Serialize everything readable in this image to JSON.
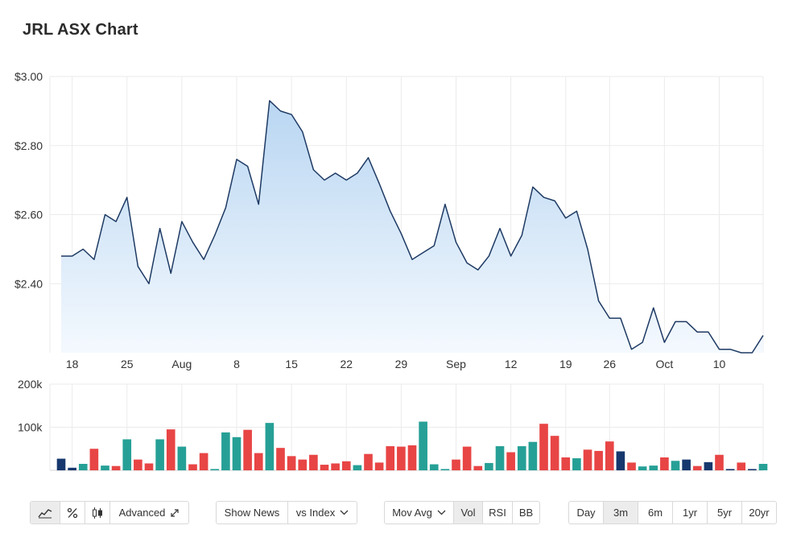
{
  "title": "JRL ASX Chart",
  "chart_data": {
    "type": "area",
    "price": {
      "y_ticks": [
        "$3.00",
        "$2.80",
        "$2.60",
        "$2.40"
      ],
      "y_tick_values": [
        3.0,
        2.8,
        2.6,
        2.4
      ],
      "ylim": [
        2.2,
        3.0
      ],
      "values": [
        2.48,
        2.48,
        2.5,
        2.47,
        2.6,
        2.58,
        2.65,
        2.45,
        2.4,
        2.56,
        2.43,
        2.58,
        2.52,
        2.47,
        2.54,
        2.62,
        2.76,
        2.74,
        2.63,
        2.93,
        2.9,
        2.89,
        2.84,
        2.73,
        2.7,
        2.72,
        2.7,
        2.72,
        2.765,
        2.69,
        2.61,
        2.545,
        2.47,
        2.49,
        2.51,
        2.63,
        2.52,
        2.46,
        2.44,
        2.48,
        2.56,
        2.48,
        2.54,
        2.68,
        2.65,
        2.64,
        2.59,
        2.61,
        2.5,
        2.35,
        2.3,
        2.3,
        2.21,
        2.23,
        2.33,
        2.23,
        2.29,
        2.29,
        2.26,
        2.26,
        2.21,
        2.21,
        2.2,
        2.2,
        2.25
      ]
    },
    "x_ticks": [
      {
        "label": "18",
        "index": 1
      },
      {
        "label": "25",
        "index": 6
      },
      {
        "label": "Aug",
        "index": 11
      },
      {
        "label": "8",
        "index": 16
      },
      {
        "label": "15",
        "index": 21
      },
      {
        "label": "22",
        "index": 26
      },
      {
        "label": "29",
        "index": 31
      },
      {
        "label": "Sep",
        "index": 36
      },
      {
        "label": "12",
        "index": 41
      },
      {
        "label": "19",
        "index": 46
      },
      {
        "label": "26",
        "index": 50
      },
      {
        "label": "Oct",
        "index": 55
      },
      {
        "label": "10",
        "index": 60
      }
    ],
    "volume": {
      "y_ticks": [
        "200k",
        "100k"
      ],
      "y_tick_values": [
        200000,
        100000
      ],
      "ylim": [
        0,
        200000
      ],
      "values": [
        27000,
        6000,
        15000,
        50000,
        11000,
        10000,
        72000,
        25000,
        16000,
        72000,
        95000,
        55000,
        14000,
        40000,
        3000,
        88000,
        77000,
        94000,
        40000,
        110000,
        52000,
        33000,
        25000,
        36000,
        13000,
        16000,
        21000,
        12000,
        38000,
        18000,
        56000,
        55000,
        58000,
        113000,
        14000,
        3000,
        25000,
        55000,
        10000,
        17000,
        56000,
        42000,
        56000,
        66000,
        108000,
        80000,
        30000,
        28000,
        48000,
        45000,
        67000,
        44000,
        18000,
        9000,
        11000,
        30000,
        22000,
        25000,
        10000,
        19000,
        36000,
        3000,
        18000,
        3000,
        15000
      ],
      "colors": [
        "navy",
        "navy",
        "teal",
        "red",
        "teal",
        "red",
        "teal",
        "red",
        "red",
        "teal",
        "red",
        "teal",
        "red",
        "red",
        "teal",
        "teal",
        "teal",
        "red",
        "red",
        "teal",
        "red",
        "red",
        "red",
        "red",
        "red",
        "red",
        "red",
        "teal",
        "red",
        "red",
        "red",
        "red",
        "red",
        "teal",
        "teal",
        "teal",
        "red",
        "red",
        "red",
        "teal",
        "teal",
        "red",
        "teal",
        "teal",
        "red",
        "red",
        "red",
        "teal",
        "red",
        "red",
        "red",
        "navy",
        "red",
        "teal",
        "teal",
        "red",
        "teal",
        "navy",
        "red",
        "navy",
        "red",
        "navy",
        "red",
        "navy",
        "teal"
      ]
    },
    "colors": {
      "line": "#1e3a63",
      "area_top": "#b9d6f2",
      "area_bottom": "#f4f9fe",
      "teal": "#26a096",
      "red": "#e84545",
      "navy": "#17386e",
      "grid": "#ebebeb"
    },
    "grid": true
  },
  "toolbar_left": {
    "line_icon": "line-chart-icon",
    "percent_icon": "percent-icon",
    "candle_icon": "candlestick-icon",
    "advanced_label": "Advanced",
    "expand_icon": "expand-icon"
  },
  "toolbar_news": {
    "show_news_label": "Show News",
    "vs_index_label": "vs Index"
  },
  "toolbar_indicators": {
    "mov_avg_label": "Mov Avg",
    "vol_label": "Vol",
    "rsi_label": "RSI",
    "bb_label": "BB"
  },
  "toolbar_range": {
    "items": [
      "Day",
      "3m",
      "6m",
      "1yr",
      "5yr",
      "20yr"
    ],
    "active": "3m"
  }
}
